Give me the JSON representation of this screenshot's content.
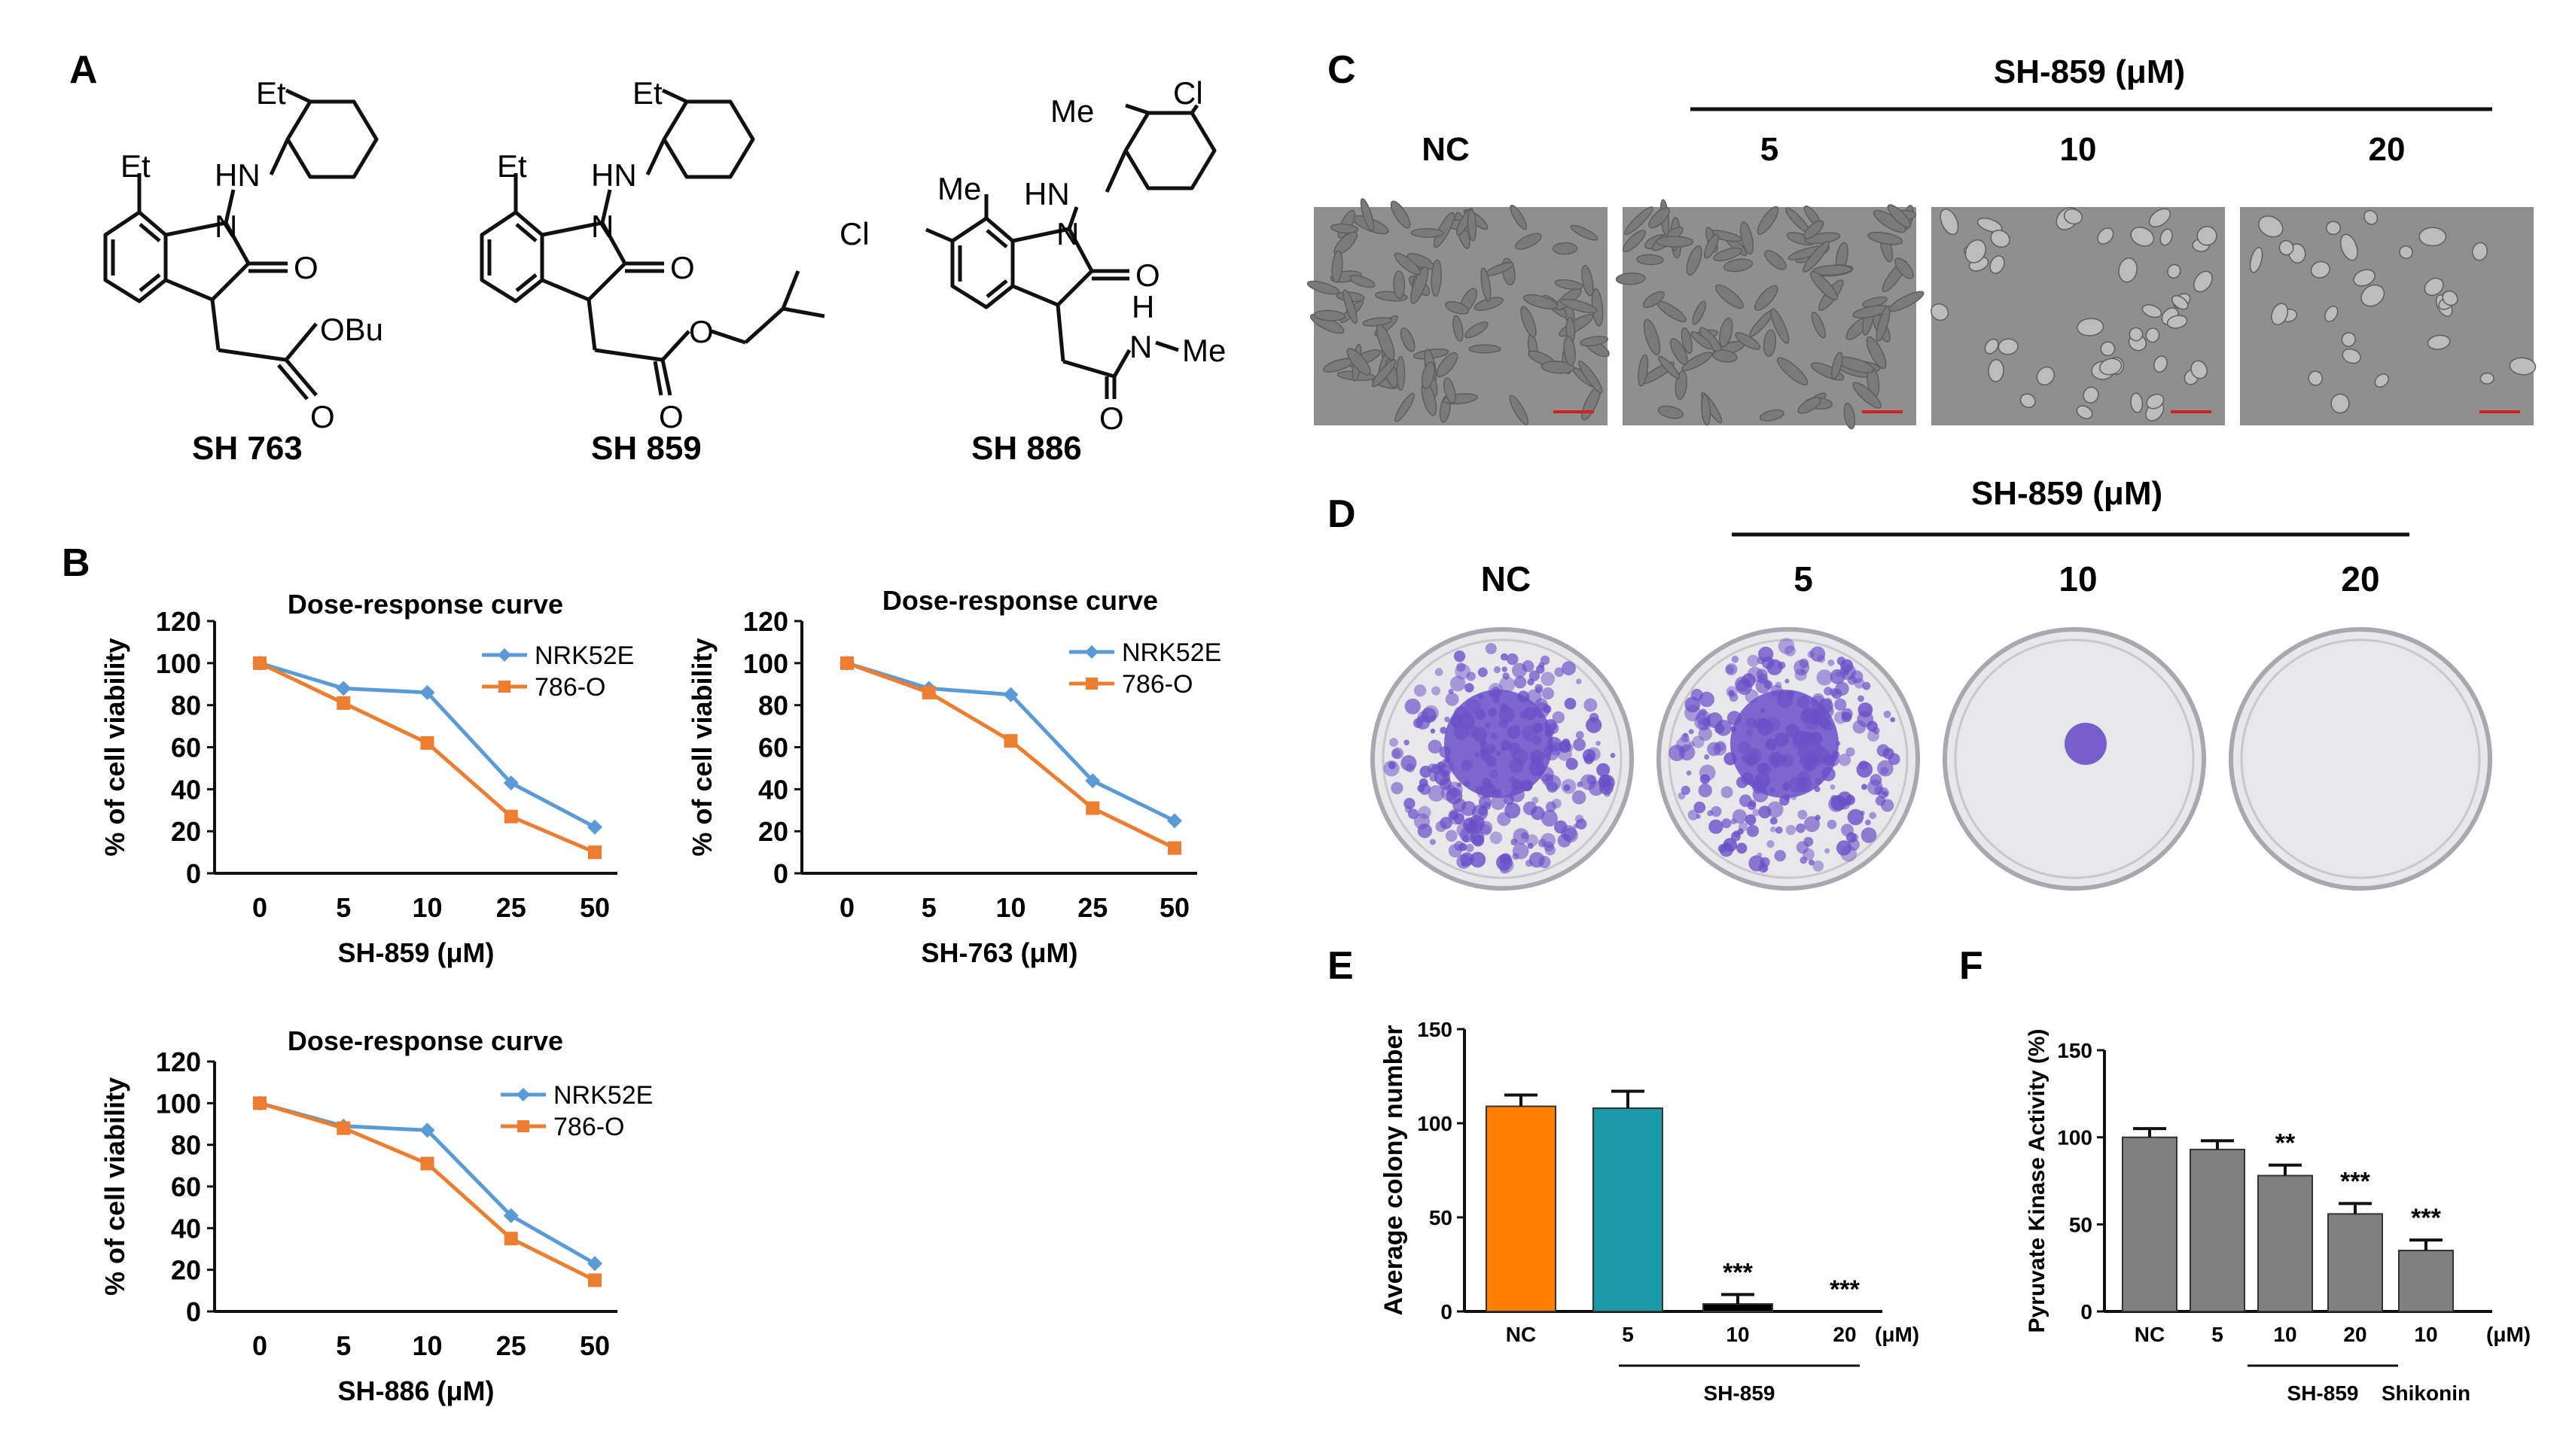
{
  "panels": {
    "A": "A",
    "B": "B",
    "C": "C",
    "D": "D",
    "E": "E",
    "F": "F"
  },
  "structures": [
    {
      "name": "SH 763",
      "atoms": {
        "et_top": "Et",
        "et_side": "Et",
        "hn": "HN",
        "n": "N",
        "o": "O",
        "ester": "OBu",
        "o2": "O"
      }
    },
    {
      "name": "SH 859",
      "atoms": {
        "et_top": "Et",
        "et_side": "Et",
        "hn": "HN",
        "n": "N",
        "o": "O",
        "o_ester": "O",
        "o2": "O"
      }
    },
    {
      "name": "SH 886",
      "atoms": {
        "me_top": "Me",
        "cl_top": "Cl",
        "me_side": "Me",
        "cl_side": "Cl",
        "hn": "HN",
        "n": "N",
        "o": "O",
        "h": "H",
        "nme_n": "N",
        "nme_me": "Me",
        "o2": "O"
      }
    }
  ],
  "colors": {
    "nrk": "#5b9bd5",
    "o786": "#ed7d31",
    "nc_bar": "#ff8000",
    "c5_bar": "#1a9aa8",
    "c10_bar": "#000000",
    "grey_bar": "#808080",
    "crystal": "#6a4fc8"
  },
  "line_charts": [
    {
      "id": "sh859",
      "title": "Dose-response curve",
      "xlabel": "SH-859 (μM)",
      "ylabel": "% of cell viability",
      "categories": [
        "0",
        "5",
        "10",
        "25",
        "50"
      ],
      "ylim": [
        0,
        120
      ],
      "yticks": [
        0,
        20,
        40,
        60,
        80,
        100,
        120
      ],
      "series": [
        {
          "name": "NRK52E",
          "values": [
            100,
            88,
            86,
            43,
            22
          ]
        },
        {
          "name": "786-O",
          "values": [
            100,
            81,
            62,
            27,
            10
          ]
        }
      ]
    },
    {
      "id": "sh763",
      "title": "Dose-response curve",
      "xlabel": "SH-763 (μM)",
      "ylabel": "% of cell viability",
      "categories": [
        "0",
        "5",
        "10",
        "25",
        "50"
      ],
      "ylim": [
        0,
        120
      ],
      "yticks": [
        0,
        20,
        40,
        60,
        80,
        100,
        120
      ],
      "series": [
        {
          "name": "NRK52E",
          "values": [
            100,
            88,
            85,
            44,
            25
          ]
        },
        {
          "name": "786-O",
          "values": [
            100,
            86,
            63,
            31,
            12
          ]
        }
      ]
    },
    {
      "id": "sh886",
      "title": "Dose-response curve",
      "xlabel": "SH-886 (μM)",
      "ylabel": "% of cell viability",
      "categories": [
        "0",
        "5",
        "10",
        "25",
        "50"
      ],
      "ylim": [
        0,
        120
      ],
      "yticks": [
        0,
        20,
        40,
        60,
        80,
        100,
        120
      ],
      "series": [
        {
          "name": "NRK52E",
          "values": [
            100,
            89,
            87,
            46,
            23
          ]
        },
        {
          "name": "786-O",
          "values": [
            100,
            88,
            71,
            35,
            15
          ]
        }
      ]
    }
  ],
  "microscopy": {
    "group_label": "SH-859 (μM)",
    "labels": [
      "NC",
      "5",
      "10",
      "20"
    ]
  },
  "colony": {
    "group_label": "SH-859 (μM)",
    "labels": [
      "NC",
      "5",
      "10",
      "20"
    ]
  },
  "chart_data": [
    {
      "type": "line",
      "title": "Dose-response curve",
      "xlabel": "SH-859 (μM)",
      "ylabel": "% of cell viability",
      "categories": [
        "0",
        "5",
        "10",
        "25",
        "50"
      ],
      "series": [
        {
          "name": "NRK52E",
          "values": [
            100,
            88,
            86,
            43,
            22
          ]
        },
        {
          "name": "786-O",
          "values": [
            100,
            81,
            62,
            27,
            10
          ]
        }
      ],
      "ylim": [
        0,
        120
      ]
    },
    {
      "type": "line",
      "title": "Dose-response curve",
      "xlabel": "SH-763 (μM)",
      "ylabel": "% of cell viability",
      "categories": [
        "0",
        "5",
        "10",
        "25",
        "50"
      ],
      "series": [
        {
          "name": "NRK52E",
          "values": [
            100,
            88,
            85,
            44,
            25
          ]
        },
        {
          "name": "786-O",
          "values": [
            100,
            86,
            63,
            31,
            12
          ]
        }
      ],
      "ylim": [
        0,
        120
      ]
    },
    {
      "type": "line",
      "title": "Dose-response curve",
      "xlabel": "SH-886 (μM)",
      "ylabel": "% of cell viability",
      "categories": [
        "0",
        "5",
        "10",
        "25",
        "50"
      ],
      "series": [
        {
          "name": "NRK52E",
          "values": [
            100,
            89,
            87,
            46,
            23
          ]
        },
        {
          "name": "786-O",
          "values": [
            100,
            88,
            71,
            35,
            15
          ]
        }
      ],
      "ylim": [
        0,
        120
      ]
    },
    {
      "type": "bar",
      "id": "E",
      "ylabel": "Average colony number",
      "categories": [
        "NC",
        "5",
        "10",
        "20"
      ],
      "values": [
        109,
        108,
        4,
        0
      ],
      "errors": [
        6,
        9,
        5,
        0
      ],
      "significance": [
        "",
        "",
        "***",
        "***"
      ],
      "unit": "(μM)",
      "group_label": "SH-859",
      "ylim": [
        0,
        150
      ],
      "yticks": [
        0,
        50,
        100,
        150
      ]
    },
    {
      "type": "bar",
      "id": "F",
      "ylabel": "Pyruvate Kinase Activity (%)",
      "categories": [
        "NC",
        "5",
        "10",
        "20",
        "10"
      ],
      "values": [
        100,
        93,
        78,
        56,
        35
      ],
      "errors": [
        5,
        5,
        6,
        6,
        6
      ],
      "significance": [
        "",
        "",
        "**",
        "***",
        "***"
      ],
      "unit": "(μM)",
      "group_label": "SH-859",
      "group2_label": "Shikonin",
      "ylim": [
        0,
        150
      ],
      "yticks": [
        0,
        50,
        100,
        150
      ]
    }
  ]
}
